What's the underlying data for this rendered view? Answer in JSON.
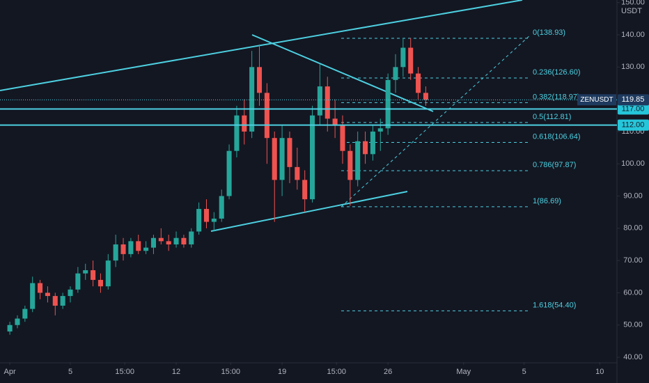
{
  "chart_data": {
    "type": "candlestick",
    "symbol": "ZENUSDT",
    "currency": "USDT",
    "x": [
      0,
      0.5,
      1,
      1.5,
      2,
      2.5,
      3,
      3.5,
      4,
      4.5,
      5,
      5.5,
      6,
      6.5,
      7,
      7.5,
      8,
      8.5,
      9,
      9.5,
      10,
      10.5,
      11,
      11.5,
      12,
      12.5,
      13,
      13.5,
      14,
      14.5,
      15,
      15.5,
      16,
      16.5,
      17,
      17.5,
      18,
      18.5,
      19,
      19.5,
      20,
      20.5,
      21,
      21.5,
      22,
      22.5,
      23,
      23.5,
      24,
      24.5,
      25,
      25.5,
      26,
      26.5,
      27,
      27.5
    ],
    "open": [
      48,
      50,
      52,
      55,
      63,
      60,
      59,
      56,
      59,
      61,
      66,
      67,
      64,
      62,
      70,
      75,
      72,
      76,
      73,
      74,
      77,
      76,
      75,
      77,
      75,
      79,
      86,
      82,
      83,
      90,
      104,
      115,
      110,
      130,
      122,
      108,
      95,
      108,
      99,
      95,
      89,
      115,
      124,
      114,
      112,
      104,
      95,
      107,
      103,
      110,
      111,
      126,
      130,
      136,
      128,
      122
    ],
    "high": [
      51,
      53,
      56,
      65,
      64,
      62,
      60,
      60,
      62,
      68,
      69,
      70,
      66,
      72,
      78,
      77,
      77,
      78,
      76,
      78,
      80,
      78,
      79,
      78,
      80,
      88,
      89,
      85,
      92,
      106,
      118,
      120,
      135,
      137,
      125,
      110,
      112,
      110,
      105,
      98,
      118,
      131,
      127,
      120,
      115,
      106,
      110,
      110,
      112,
      114,
      128,
      134,
      139,
      139,
      130,
      124
    ],
    "low": [
      47,
      49,
      51,
      54,
      58,
      57,
      53,
      55,
      57,
      60,
      64,
      62,
      60,
      61,
      68,
      70,
      71,
      72,
      72,
      72,
      75,
      73,
      74,
      74,
      74,
      78,
      80,
      79,
      82,
      89,
      102,
      106,
      108,
      118,
      100,
      82,
      90,
      94,
      92,
      85,
      88,
      112,
      110,
      108,
      100,
      87,
      93,
      100,
      101,
      104,
      109,
      122,
      127,
      126,
      120,
      118
    ],
    "close": [
      50,
      52,
      55,
      63,
      60,
      59,
      56,
      59,
      61,
      66,
      67,
      64,
      62,
      70,
      75,
      72,
      76,
      73,
      74,
      77,
      76,
      75,
      77,
      75,
      79,
      86,
      82,
      83,
      90,
      104,
      115,
      110,
      130,
      122,
      108,
      95,
      108,
      99,
      95,
      89,
      115,
      124,
      114,
      112,
      104,
      95,
      107,
      103,
      110,
      111,
      126,
      130,
      136,
      128,
      122,
      119.85
    ],
    "up_color": "#26a69a",
    "down_color": "#ef5350",
    "xlim": [
      -0.65,
      40.14
    ],
    "xticks": [
      {
        "value": 0,
        "label": "Apr"
      },
      {
        "value": 4,
        "label": "5"
      },
      {
        "value": 7.6,
        "label": "15:00"
      },
      {
        "value": 11,
        "label": "12"
      },
      {
        "value": 14.6,
        "label": "15:00"
      },
      {
        "value": 18,
        "label": "19"
      },
      {
        "value": 21.6,
        "label": "15:00"
      },
      {
        "value": 25,
        "label": "26"
      },
      {
        "value": 30,
        "label": "May"
      },
      {
        "value": 34,
        "label": "5"
      },
      {
        "value": 39,
        "label": "10"
      }
    ],
    "ylim": [
      38.5,
      150.8
    ],
    "yticks": [
      {
        "value": 40,
        "label": "40.00"
      },
      {
        "value": 50,
        "label": "50.00"
      },
      {
        "value": 60,
        "label": "60.00"
      },
      {
        "value": 70,
        "label": "70.00"
      },
      {
        "value": 80,
        "label": "80.00"
      },
      {
        "value": 90,
        "label": "90.00"
      },
      {
        "value": 100,
        "label": "100.00"
      },
      {
        "value": 110,
        "label": "110.00"
      },
      {
        "value": 130,
        "label": "130.00"
      },
      {
        "value": 140,
        "label": "140.00"
      },
      {
        "value": 150,
        "label": "150.00"
      }
    ],
    "fib_levels": [
      {
        "value": 138.93,
        "label": "0(138.93)"
      },
      {
        "value": 126.6,
        "label": "0.236(126.60)"
      },
      {
        "value": 118.97,
        "label": "0.382(118.97)"
      },
      {
        "value": 112.81,
        "label": "0.5(112.81)"
      },
      {
        "value": 106.64,
        "label": "0.618(106.64)"
      },
      {
        "value": 97.87,
        "label": "0.786(97.87)"
      },
      {
        "value": 86.69,
        "label": "1(86.69)"
      },
      {
        "value": 54.4,
        "label": "1.618(54.40)"
      }
    ],
    "levels": [
      {
        "value": 117,
        "label": "117.00"
      },
      {
        "value": 112,
        "label": "112.00"
      }
    ],
    "last_price": {
      "value": 119.85,
      "label": "119.85"
    }
  }
}
